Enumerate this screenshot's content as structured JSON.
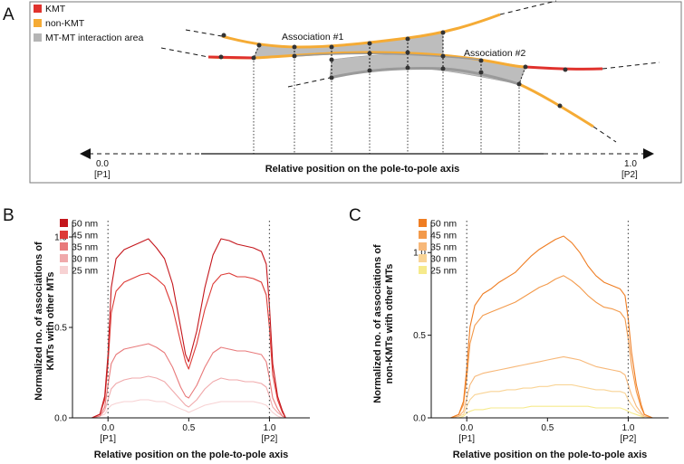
{
  "figure": {
    "panel_a": {
      "letter": "A",
      "legend": [
        {
          "label": "KMT",
          "color": "#e0322d"
        },
        {
          "label": "non-KMT",
          "color": "#f5ab35"
        },
        {
          "label": "MT-MT interaction area",
          "color": "#b5b5b5"
        }
      ],
      "association_1": "Association #1",
      "association_2": "Association #2",
      "axis_label": "Relative position on the pole-to-pole axis",
      "left_value": "0.0",
      "left_pole": "[P1]",
      "right_value": "1.0",
      "right_pole": "[P2]"
    },
    "panel_b": {
      "letter": "B"
    },
    "panel_c": {
      "letter": "C"
    }
  },
  "chart_data": [
    {
      "panel": "B",
      "type": "line",
      "xlabel": "Relative position on the pole-to-pole axis",
      "ylabel_line1": "Normalized no. of associations of",
      "ylabel_line2": "KMTs with other MTs",
      "xlim": [
        -0.22,
        1.25
      ],
      "ylim": [
        0,
        1.06
      ],
      "x_ticks": [
        {
          "value": 0,
          "label": "0.0",
          "sub": "[P1]"
        },
        {
          "value": 0.5,
          "label": "0.5",
          "sub": ""
        },
        {
          "value": 1,
          "label": "1.0",
          "sub": "[P2]"
        }
      ],
      "y_ticks": [
        {
          "value": 0,
          "label": "0.0"
        },
        {
          "value": 0.5,
          "label": "0.5"
        },
        {
          "value": 1,
          "label": "1.0"
        }
      ],
      "pole_lines": [
        0,
        1
      ],
      "x": [
        -0.2,
        -0.1,
        -0.05,
        -0.02,
        0.0,
        0.02,
        0.05,
        0.1,
        0.15,
        0.2,
        0.25,
        0.3,
        0.35,
        0.4,
        0.45,
        0.48,
        0.5,
        0.55,
        0.6,
        0.65,
        0.7,
        0.75,
        0.8,
        0.85,
        0.9,
        0.95,
        0.98,
        1.0,
        1.02,
        1.05,
        1.08,
        1.1
      ],
      "series": [
        {
          "name": "50 nm",
          "color": "#c4161c",
          "values": [
            0,
            0.0,
            0.02,
            0.12,
            0.35,
            0.72,
            0.88,
            0.93,
            0.95,
            0.97,
            0.99,
            0.94,
            0.88,
            0.74,
            0.5,
            0.35,
            0.31,
            0.48,
            0.72,
            0.9,
            0.99,
            0.98,
            0.96,
            0.95,
            0.94,
            0.92,
            0.85,
            0.62,
            0.3,
            0.12,
            0.04,
            0.0
          ]
        },
        {
          "name": "45 nm",
          "color": "#dd3a36",
          "values": [
            0,
            0.0,
            0.02,
            0.1,
            0.3,
            0.58,
            0.7,
            0.75,
            0.77,
            0.79,
            0.8,
            0.77,
            0.73,
            0.61,
            0.42,
            0.31,
            0.27,
            0.41,
            0.6,
            0.74,
            0.79,
            0.8,
            0.78,
            0.78,
            0.77,
            0.75,
            0.68,
            0.5,
            0.24,
            0.1,
            0.03,
            0.0
          ]
        },
        {
          "name": "35 nm",
          "color": "#e87a7b",
          "values": [
            0,
            0.0,
            0.01,
            0.06,
            0.18,
            0.3,
            0.35,
            0.38,
            0.39,
            0.4,
            0.41,
            0.39,
            0.36,
            0.28,
            0.17,
            0.12,
            0.11,
            0.18,
            0.28,
            0.36,
            0.39,
            0.38,
            0.37,
            0.37,
            0.36,
            0.35,
            0.31,
            0.22,
            0.11,
            0.05,
            0.01,
            0.0
          ]
        },
        {
          "name": "30 nm",
          "color": "#f0a9ab",
          "values": [
            0,
            0.0,
            0.01,
            0.04,
            0.1,
            0.16,
            0.19,
            0.21,
            0.22,
            0.22,
            0.23,
            0.22,
            0.2,
            0.15,
            0.1,
            0.07,
            0.06,
            0.1,
            0.16,
            0.2,
            0.22,
            0.21,
            0.21,
            0.2,
            0.2,
            0.19,
            0.17,
            0.12,
            0.06,
            0.03,
            0.01,
            0.0
          ]
        },
        {
          "name": "25 nm",
          "color": "#f7d2d3",
          "values": [
            0,
            0.0,
            0.01,
            0.02,
            0.05,
            0.07,
            0.08,
            0.09,
            0.09,
            0.1,
            0.1,
            0.09,
            0.09,
            0.07,
            0.05,
            0.04,
            0.03,
            0.05,
            0.07,
            0.08,
            0.09,
            0.09,
            0.09,
            0.09,
            0.09,
            0.08,
            0.07,
            0.05,
            0.03,
            0.01,
            0.0,
            0.0
          ]
        }
      ]
    },
    {
      "panel": "C",
      "type": "line",
      "xlabel": "Relative position on the pole-to-pole axis",
      "ylabel_line1": "Normalized no. of associations of",
      "ylabel_line2": "non-KMTs with other MTs",
      "xlim": [
        -0.22,
        1.25
      ],
      "ylim": [
        0,
        1.16
      ],
      "x_ticks": [
        {
          "value": 0,
          "label": "0.0",
          "sub": "[P1]"
        },
        {
          "value": 0.5,
          "label": "0.5",
          "sub": ""
        },
        {
          "value": 1,
          "label": "1.0",
          "sub": "[P2]"
        }
      ],
      "y_ticks": [
        {
          "value": 0,
          "label": "0.0"
        },
        {
          "value": 0.5,
          "label": "0.5"
        },
        {
          "value": 1,
          "label": "1.0"
        }
      ],
      "pole_lines": [
        0,
        1
      ],
      "x": [
        -0.2,
        -0.1,
        -0.05,
        -0.02,
        0.0,
        0.02,
        0.05,
        0.1,
        0.15,
        0.2,
        0.25,
        0.3,
        0.35,
        0.4,
        0.45,
        0.5,
        0.55,
        0.6,
        0.65,
        0.7,
        0.75,
        0.8,
        0.85,
        0.9,
        0.95,
        0.98,
        1.0,
        1.02,
        1.05,
        1.08,
        1.1,
        1.15
      ],
      "series": [
        {
          "name": "50 nm",
          "color": "#ef7d22",
          "values": [
            0,
            0.0,
            0.02,
            0.1,
            0.3,
            0.55,
            0.68,
            0.75,
            0.78,
            0.82,
            0.85,
            0.88,
            0.93,
            0.98,
            1.02,
            1.05,
            1.08,
            1.1,
            1.06,
            1.0,
            0.92,
            0.86,
            0.82,
            0.8,
            0.78,
            0.74,
            0.6,
            0.4,
            0.2,
            0.08,
            0.02,
            0.0
          ]
        },
        {
          "name": "45 nm",
          "color": "#f39a4b",
          "values": [
            0,
            0.0,
            0.02,
            0.08,
            0.24,
            0.45,
            0.56,
            0.62,
            0.64,
            0.66,
            0.68,
            0.7,
            0.73,
            0.76,
            0.79,
            0.81,
            0.84,
            0.86,
            0.83,
            0.79,
            0.74,
            0.7,
            0.67,
            0.66,
            0.64,
            0.6,
            0.48,
            0.32,
            0.16,
            0.06,
            0.02,
            0.0
          ]
        },
        {
          "name": "35 nm",
          "color": "#f7b879",
          "values": [
            0,
            0.0,
            0.01,
            0.04,
            0.12,
            0.2,
            0.25,
            0.27,
            0.28,
            0.29,
            0.3,
            0.31,
            0.32,
            0.33,
            0.34,
            0.35,
            0.36,
            0.37,
            0.36,
            0.35,
            0.33,
            0.31,
            0.3,
            0.29,
            0.28,
            0.26,
            0.2,
            0.14,
            0.07,
            0.03,
            0.01,
            0.0
          ]
        },
        {
          "name": "30 nm",
          "color": "#f9d496",
          "values": [
            0,
            0.0,
            0.01,
            0.02,
            0.07,
            0.11,
            0.14,
            0.15,
            0.16,
            0.16,
            0.17,
            0.17,
            0.18,
            0.18,
            0.19,
            0.19,
            0.2,
            0.2,
            0.2,
            0.19,
            0.18,
            0.17,
            0.17,
            0.16,
            0.16,
            0.15,
            0.11,
            0.08,
            0.04,
            0.02,
            0.0,
            0.0
          ]
        },
        {
          "name": "25 nm",
          "color": "#f6ea8c",
          "values": [
            0,
            0.0,
            0.0,
            0.01,
            0.03,
            0.04,
            0.05,
            0.05,
            0.06,
            0.06,
            0.06,
            0.06,
            0.06,
            0.07,
            0.07,
            0.07,
            0.07,
            0.07,
            0.07,
            0.07,
            0.07,
            0.06,
            0.06,
            0.06,
            0.06,
            0.05,
            0.04,
            0.03,
            0.02,
            0.01,
            0.0,
            0.0
          ]
        }
      ]
    }
  ]
}
